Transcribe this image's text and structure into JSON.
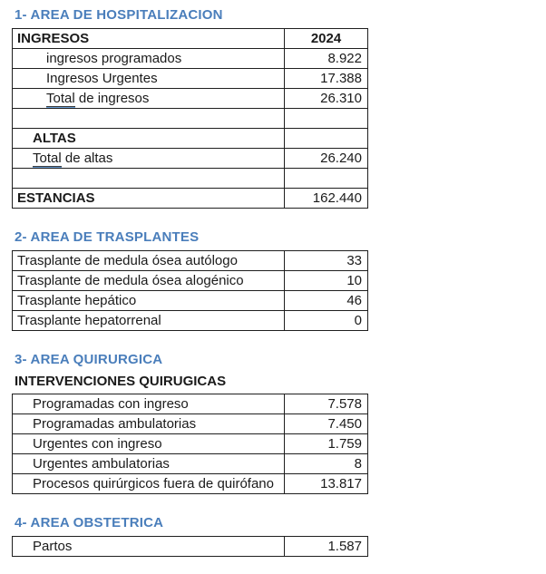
{
  "colors": {
    "heading_blue": "#4a7ebb",
    "table_border": "#1f1f1f",
    "text": "#1a1a1a",
    "grammar_underline_blue": "#6ba0d8"
  },
  "sections": [
    {
      "title": "1- AREA DE HOSPITALIZACION",
      "rows": [
        {
          "label": "INGRESOS",
          "bold": true,
          "indent": 0,
          "value": "2024",
          "value_bold": true,
          "value_align": "center"
        },
        {
          "label": "ingresos programados",
          "indent": 2,
          "value": "8.922"
        },
        {
          "label": "Ingresos Urgentes",
          "indent": 2,
          "value": "17.388"
        },
        {
          "label_underline": "Total",
          "label_rest": " de ingresos",
          "indent": 2,
          "value": "26.310"
        },
        {
          "label": "",
          "indent": 0,
          "value": ""
        },
        {
          "label": "ALTAS",
          "bold": true,
          "indent": 1,
          "value": ""
        },
        {
          "label_underline": "Total",
          "label_rest": " de altas",
          "indent": 1,
          "value": "26.240"
        },
        {
          "label": "",
          "indent": 0,
          "value": ""
        },
        {
          "label": "ESTANCIAS",
          "bold": true,
          "indent": 0,
          "value": "162.440"
        }
      ]
    },
    {
      "title": "2- AREA DE TRASPLANTES",
      "rows": [
        {
          "label": "Trasplante de medula ósea autólogo",
          "indent": 0,
          "value": "33"
        },
        {
          "label": "Trasplante de medula ósea alogénico",
          "indent": 0,
          "value": "10"
        },
        {
          "label": "Trasplante hepático",
          "indent": 0,
          "value": "46"
        },
        {
          "label": "Trasplante hepatorrenal",
          "indent": 0,
          "value": "0"
        }
      ]
    },
    {
      "title": "3- AREA QUIRURGICA",
      "subtitle": "INTERVENCIONES QUIRUGICAS",
      "rows": [
        {
          "label": "Programadas con ingreso",
          "indent": 1,
          "value": "7.578"
        },
        {
          "label": "Programadas ambulatorias",
          "indent": 1,
          "value": "7.450"
        },
        {
          "label": "Urgentes con ingreso",
          "indent": 1,
          "value": "1.759"
        },
        {
          "label": "Urgentes ambulatorias",
          "indent": 1,
          "value": "8"
        },
        {
          "label": "Procesos quirúrgicos fuera de quirófano",
          "indent": 1,
          "value": "13.817"
        }
      ]
    },
    {
      "title": "4- AREA OBSTETRICA",
      "rows": [
        {
          "label": "Partos",
          "indent": 1,
          "value": "1.587"
        }
      ]
    }
  ]
}
